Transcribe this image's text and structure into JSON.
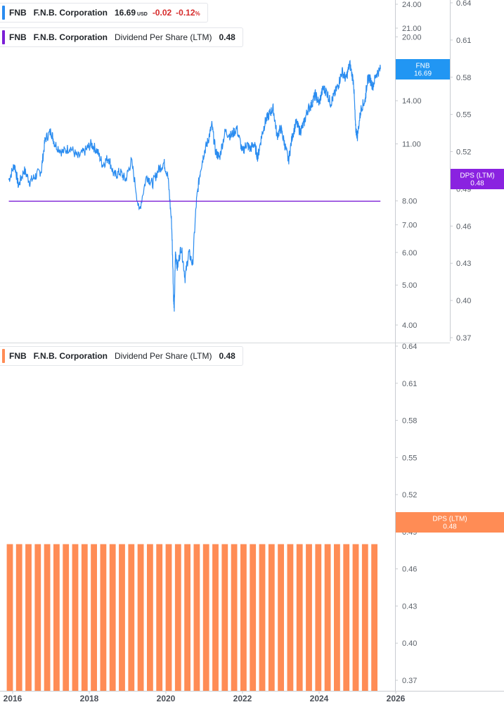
{
  "legend_price": {
    "ticker": "FNB",
    "company": "F.N.B. Corporation",
    "price": "16.69",
    "currency": "USD",
    "change": "-0.02",
    "change_pct": "-0.12",
    "pct_sign": "%",
    "color": "#2a8cf0"
  },
  "legend_dps_top": {
    "ticker": "FNB",
    "company": "F.N.B. Corporation",
    "metric": "Dividend Per Share (LTM)",
    "value": "0.48",
    "color": "#7b1fd6"
  },
  "legend_dps_bottom": {
    "ticker": "FNB",
    "company": "F.N.B. Corporation",
    "metric": "Dividend Per Share (LTM)",
    "value": "0.48",
    "color": "#ff8c55"
  },
  "tags": {
    "price": {
      "line1": "FNB",
      "line2": "16.69",
      "color": "#2196f3"
    },
    "dps_top": {
      "line1": "DPS (LTM)",
      "line2": "0.48",
      "color": "#8a22e0"
    },
    "dps_bottom": {
      "line1": "DPS (LTM)",
      "line2": "0.48",
      "color": "#ff8c55"
    }
  },
  "chart_data": [
    {
      "type": "line",
      "scale": "log",
      "series": [
        {
          "name": "FNB",
          "color": "#2a8cf0",
          "x": [
            2015.9,
            2016.05,
            2016.15,
            2016.3,
            2016.45,
            2016.6,
            2016.75,
            2016.85,
            2017.0,
            2017.1,
            2017.3,
            2017.5,
            2017.7,
            2017.9,
            2018.05,
            2018.2,
            2018.35,
            2018.5,
            2018.65,
            2018.8,
            2018.95,
            2019.1,
            2019.3,
            2019.5,
            2019.65,
            2019.8,
            2019.95,
            2020.05,
            2020.15,
            2020.2,
            2020.22,
            2020.25,
            2020.3,
            2020.4,
            2020.5,
            2020.6,
            2020.7,
            2020.8,
            2020.9,
            2021.0,
            2021.1,
            2021.2,
            2021.3,
            2021.4,
            2021.55,
            2021.7,
            2021.85,
            2022.0,
            2022.1,
            2022.2,
            2022.3,
            2022.4,
            2022.5,
            2022.6,
            2022.7,
            2022.8,
            2022.9,
            2023.0,
            2023.1,
            2023.2,
            2023.3,
            2023.4,
            2023.5,
            2023.6,
            2023.7,
            2023.8,
            2023.9,
            2024.0,
            2024.1,
            2024.2,
            2024.3,
            2024.4,
            2024.5,
            2024.6,
            2024.7,
            2024.8,
            2024.9,
            2024.95,
            2025.0,
            2025.1,
            2025.2,
            2025.25,
            2025.3,
            2025.4,
            2025.5,
            2025.6
          ],
          "y": [
            9.0,
            9.8,
            8.7,
            9.5,
            8.9,
            9.2,
            9.5,
            11.3,
            11.8,
            11.0,
            10.5,
            10.8,
            10.2,
            10.6,
            11.0,
            10.6,
            9.8,
            10.2,
            9.2,
            9.4,
            9.0,
            10.0,
            7.5,
            9.2,
            8.8,
            9.5,
            9.9,
            9.2,
            7.0,
            4.7,
            4.4,
            6.0,
            5.5,
            6.2,
            5.2,
            6.0,
            5.6,
            8.0,
            9.5,
            10.5,
            11.2,
            12.2,
            10.5,
            10.2,
            11.8,
            11.5,
            12.0,
            10.5,
            11.0,
            10.7,
            11.0,
            10.2,
            11.5,
            12.5,
            13.0,
            13.4,
            11.5,
            12.0,
            11.0,
            10.0,
            11.5,
            12.4,
            11.8,
            12.3,
            13.3,
            13.7,
            14.5,
            13.8,
            15.0,
            14.7,
            13.8,
            14.5,
            15.3,
            16.5,
            15.8,
            17.2,
            15.5,
            12.0,
            11.5,
            13.5,
            14.0,
            15.5,
            16.0,
            15.2,
            16.3,
            16.69
          ]
        },
        {
          "name": "DPS (LTM)",
          "color": "#7b1fd6",
          "axis": "right",
          "x": [
            2015.9,
            2025.6
          ],
          "y": [
            0.48,
            0.48
          ]
        }
      ],
      "price_axis": {
        "ticks": [
          "24.00",
          "21.00",
          "20.00",
          "14.00",
          "11.00",
          "8.00",
          "7.00",
          "6.00",
          "5.00",
          "4.00"
        ]
      },
      "dps_axis": {
        "ticks": [
          "0.64",
          "0.61",
          "0.58",
          "0.55",
          "0.52",
          "0.49",
          "0.46",
          "0.43",
          "0.40",
          "0.37"
        ]
      }
    },
    {
      "type": "bar",
      "series": [
        {
          "name": "Dividend Per Share (LTM)",
          "color": "#ff8c55",
          "bar_count": 40,
          "x_start": 2015.9,
          "x_end": 2025.55,
          "value": 0.48
        }
      ],
      "y_axis": {
        "ticks": [
          "0.64",
          "0.61",
          "0.58",
          "0.55",
          "0.52",
          "0.49",
          "0.46",
          "0.43",
          "0.40",
          "0.37"
        ]
      },
      "x_axis": {
        "ticks": [
          "2016",
          "2018",
          "2020",
          "2022",
          "2024",
          "2026"
        ]
      }
    }
  ]
}
